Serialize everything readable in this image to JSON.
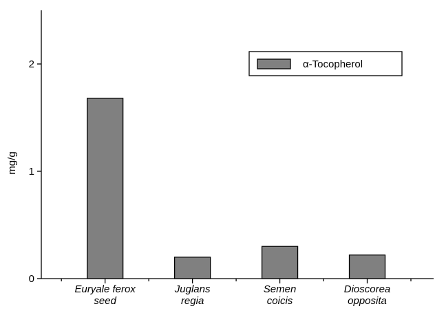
{
  "chart_data": {
    "type": "bar",
    "y_label": "mg/g",
    "categories": [
      "Euryale ferox seed",
      "Juglans regia",
      "Semen coicis",
      "Dioscorea opposita"
    ],
    "series": [
      {
        "name": "α-Tocopherol",
        "color": "#808080",
        "values": [
          1.68,
          0.2,
          0.3,
          0.22
        ]
      }
    ],
    "ylim": [
      0,
      2.5
    ],
    "yticks": [
      0,
      1,
      2
    ],
    "grid": false,
    "legend": "upper right"
  }
}
